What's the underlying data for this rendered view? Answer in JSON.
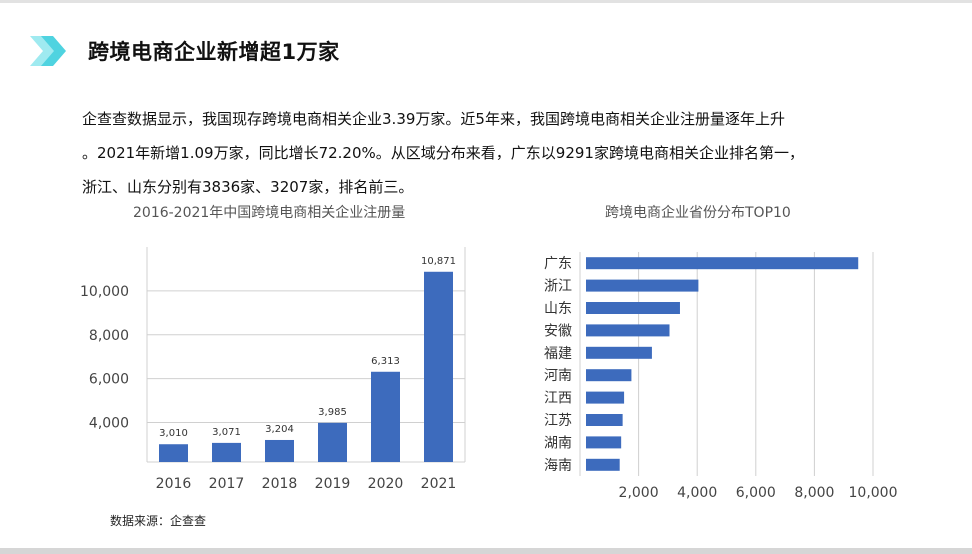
{
  "slide": {
    "title": "跨境电商企业新增超1万家",
    "paragraph": [
      "企查查数据显示，我国现存跨境电商相关企业3.39万家。近5年来，我国跨境电商相关企业注册量逐年上升",
      "。2021年新增1.09万家，同比增长72.20%。从区域分布来看，广东以9291家跨境电商相关企业排名第一，",
      "浙江、山东分别有3836家、3207家，排名前三。"
    ],
    "source": "数据来源：企查查"
  },
  "colors": {
    "bar": "#3d6bbd",
    "accent": "#4fd3e0",
    "grid": "#d0d0d0"
  },
  "chart_data": [
    {
      "type": "bar",
      "title": "2016-2021年中国跨境电商相关企业注册量",
      "categories": [
        "2016",
        "2017",
        "2018",
        "2019",
        "2020",
        "2021"
      ],
      "values": [
        3010,
        3071,
        3204,
        3985,
        6313,
        10871
      ],
      "value_labels": [
        "3,010",
        "3,071",
        "3,204",
        "3,985",
        "6,313",
        "10,871"
      ],
      "ylim": [
        2200,
        12000
      ],
      "yticks": [
        4000,
        6000,
        8000,
        10000
      ],
      "ytick_labels": [
        "4,000",
        "6,000",
        "8,000",
        "10,000"
      ],
      "grid": true
    },
    {
      "type": "bar",
      "orientation": "horizontal",
      "title": "跨境电商企业省份分布TOP10",
      "categories": [
        "广东",
        "浙江",
        "山东",
        "安徽",
        "福建",
        "河南",
        "江西",
        "江苏",
        "湖南",
        "海南"
      ],
      "values": [
        9291,
        3836,
        3207,
        2850,
        2250,
        1550,
        1300,
        1250,
        1200,
        1150
      ],
      "xlim": [
        0,
        10000
      ],
      "xticks": [
        2000,
        4000,
        6000,
        8000,
        10000
      ],
      "xtick_labels": [
        "2,000",
        "4,000",
        "6,000",
        "8,000",
        "10,000"
      ],
      "grid": true
    }
  ]
}
